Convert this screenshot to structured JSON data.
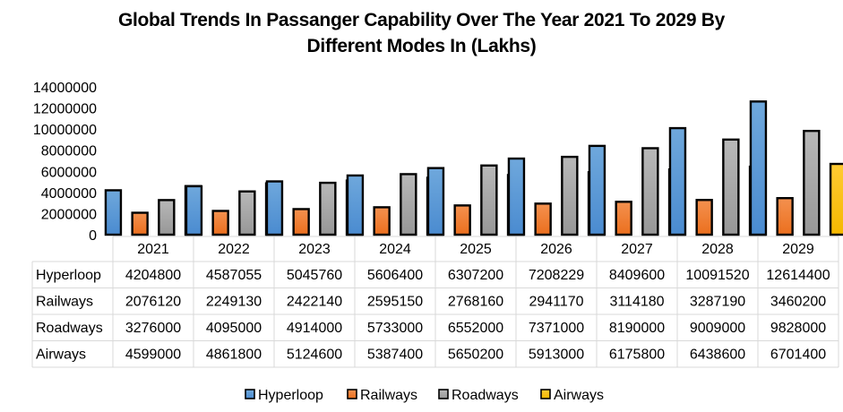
{
  "chart_data": {
    "type": "bar",
    "title_lines": [
      "Global Trends In Passanger Capability Over The Year 2021 To 2029 By",
      "Different Modes In (Lakhs)"
    ],
    "xlabel": "",
    "ylabel": "",
    "ylim": [
      0,
      14000000
    ],
    "yticks": [
      "0",
      "2000000",
      "4000000",
      "6000000",
      "8000000",
      "10000000",
      "12000000",
      "14000000"
    ],
    "ytick_values": [
      0,
      2000000,
      4000000,
      6000000,
      8000000,
      10000000,
      12000000,
      14000000
    ],
    "grid": false,
    "legend_position": "bottom",
    "data_table": true,
    "categories": [
      "2021",
      "2022",
      "2023",
      "2024",
      "2025",
      "2026",
      "2027",
      "2028",
      "2029"
    ],
    "series": [
      {
        "name": "Hyperloop",
        "color": "#5B9BD5",
        "values": [
          4204800,
          4587055,
          5045760,
          5606400,
          6307200,
          7208229,
          8409600,
          10091520,
          12614400
        ]
      },
      {
        "name": "Railways",
        "color": "#ED7D31",
        "values": [
          2076120,
          2249130,
          2422140,
          2595150,
          2768160,
          2941170,
          3114180,
          3287190,
          3460200
        ]
      },
      {
        "name": "Roadways",
        "color": "#A5A5A5",
        "values": [
          3276000,
          4095000,
          4914000,
          5733000,
          6552000,
          7371000,
          8190000,
          9009000,
          9828000
        ]
      },
      {
        "name": "Airways",
        "color": "#FFC000",
        "values": [
          4599000,
          4861800,
          5124600,
          5387400,
          5650200,
          5913000,
          6175800,
          6438600,
          6701400
        ]
      }
    ]
  }
}
